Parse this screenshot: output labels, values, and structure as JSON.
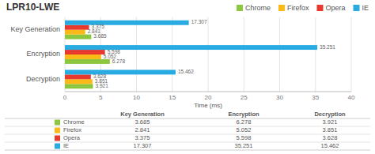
{
  "chart_data": {
    "type": "bar",
    "orientation": "horizontal",
    "title": "LPR10-LWE",
    "xlabel": "Time (ms)",
    "categories": [
      "Key Generation",
      "Encryption",
      "Decryption"
    ],
    "series": [
      {
        "name": "Chrome",
        "color": "#8dc63f",
        "values": [
          3.685,
          6.278,
          3.921
        ]
      },
      {
        "name": "Firefox",
        "color": "#fbb917",
        "values": [
          2.841,
          5.052,
          3.851
        ]
      },
      {
        "name": "Opera",
        "color": "#e8392e",
        "values": [
          3.375,
          5.598,
          3.628
        ]
      },
      {
        "name": "IE",
        "color": "#29abe2",
        "values": [
          17.307,
          35.251,
          15.462
        ]
      }
    ],
    "xlim": [
      0,
      40
    ],
    "xticks": [
      0,
      5,
      10,
      15,
      20,
      25,
      30,
      35,
      40
    ],
    "grid": true,
    "legend": "top",
    "data_labels": true
  }
}
